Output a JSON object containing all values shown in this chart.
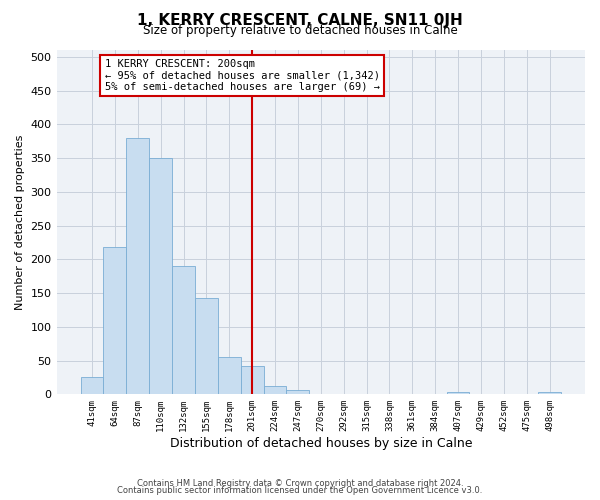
{
  "title": "1, KERRY CRESCENT, CALNE, SN11 0JH",
  "subtitle": "Size of property relative to detached houses in Calne",
  "xlabel": "Distribution of detached houses by size in Calne",
  "ylabel": "Number of detached properties",
  "bar_labels": [
    "41sqm",
    "64sqm",
    "87sqm",
    "110sqm",
    "132sqm",
    "155sqm",
    "178sqm",
    "201sqm",
    "224sqm",
    "247sqm",
    "270sqm",
    "292sqm",
    "315sqm",
    "338sqm",
    "361sqm",
    "384sqm",
    "407sqm",
    "429sqm",
    "452sqm",
    "475sqm",
    "498sqm"
  ],
  "bar_heights": [
    25,
    218,
    380,
    350,
    190,
    143,
    55,
    42,
    13,
    6,
    0,
    0,
    0,
    0,
    0,
    0,
    3,
    0,
    0,
    0,
    3
  ],
  "bar_color": "#c8ddf0",
  "bar_edge_color": "#7aadd4",
  "vline_position": 7.5,
  "vline_color": "#cc0000",
  "annotation_title": "1 KERRY CRESCENT: 200sqm",
  "annotation_line1": "← 95% of detached houses are smaller (1,342)",
  "annotation_line2": "5% of semi-detached houses are larger (69) →",
  "annotation_box_color": "#ffffff",
  "annotation_box_edge": "#cc0000",
  "ylim": [
    0,
    510
  ],
  "yticks": [
    0,
    50,
    100,
    150,
    200,
    250,
    300,
    350,
    400,
    450,
    500
  ],
  "footer1": "Contains HM Land Registry data © Crown copyright and database right 2024.",
  "footer2": "Contains public sector information licensed under the Open Government Licence v3.0.",
  "bg_color": "#eef2f7",
  "grid_color": "#c8d0dc"
}
